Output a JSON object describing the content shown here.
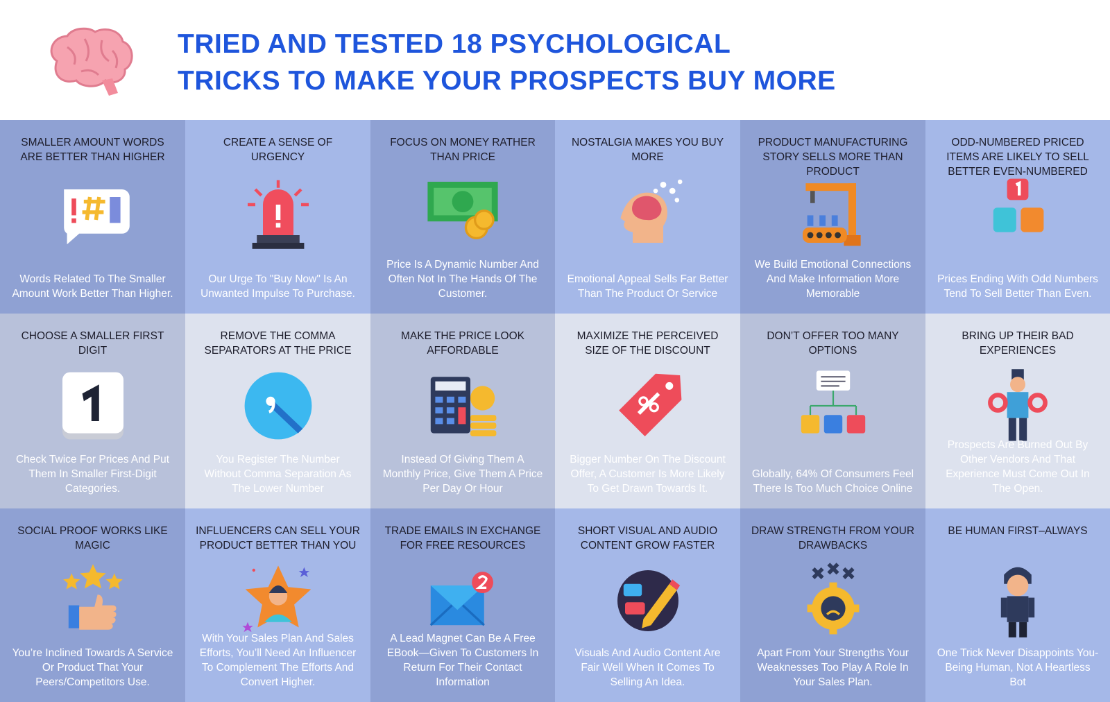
{
  "header": {
    "title_line1": "TRIED AND TESTED 18 PSYCHOLOGICAL",
    "title_line2": "TRICKS TO MAKE YOUR PROSPECTS BUY MORE"
  },
  "cards": [
    {
      "title": "SMALLER AMOUNT WORDS ARE BETTER THAN HIGHER",
      "text": "Words Related To The Smaller Amount Work Better Than Higher."
    },
    {
      "title": "CREATE A SENSE OF URGENCY",
      "text": "Our Urge To \"Buy Now\" Is An Unwanted Impulse To Purchase."
    },
    {
      "title": "FOCUS ON MONEY RATHER THAN PRICE",
      "text": "Price Is A Dynamic Number And Often Not In The Hands Of The Customer."
    },
    {
      "title": "NOSTALGIA MAKES YOU BUY MORE",
      "text": "Emotional Appeal Sells Far Better Than The Product Or Service"
    },
    {
      "title": "PRODUCT MANUFACTURING STORY SELLS MORE THAN PRODUCT",
      "text": "We Build Emotional Connections And Make Information More Memorable"
    },
    {
      "title": "ODD-NUMBERED PRICED ITEMS ARE LIKELY TO SELL BETTER EVEN-NUMBERED",
      "text": "Prices Ending With Odd Numbers Tend To Sell Better Than Even."
    },
    {
      "title": "CHOOSE A SMALLER FIRST DIGIT",
      "text": "Check Twice For Prices And Put Them In Smaller First-Digit Categories."
    },
    {
      "title": "REMOVE THE COMMA SEPARATORS AT THE PRICE",
      "text": "You Register The Number Without Comma Separation As The Lower Number"
    },
    {
      "title": "MAKE THE PRICE LOOK AFFORDABLE",
      "text": "Instead Of Giving Them A Monthly Price, Give Them A Price Per Day Or Hour"
    },
    {
      "title": "MAXIMIZE THE PERCEIVED SIZE OF THE DISCOUNT",
      "text": "Bigger Number On The Discount Offer, A Customer Is More Likely To Get Drawn Towards It."
    },
    {
      "title": "DON’T OFFER TOO MANY OPTIONS",
      "text": "Globally, 64% Of Consumers Feel There Is Too Much Choice Online"
    },
    {
      "title": "BRING UP THEIR BAD EXPERIENCES",
      "text": "Prospects Are Burned Out By Other Vendors And That Experience Must Come Out In The Open."
    },
    {
      "title": "SOCIAL PROOF WORKS LIKE MAGIC",
      "text": "You’re Inclined Towards A Service Or Product That Your Peers/Competitors Use."
    },
    {
      "title": "INFLUENCERS CAN SELL YOUR PRODUCT BETTER THAN YOU",
      "text": "With Your Sales Plan And Sales Efforts, You’ll Need An Influencer To Complement The Efforts And Convert Higher."
    },
    {
      "title": "TRADE EMAILS IN EXCHANGE FOR FREE RESOURCES",
      "text": "A Lead Magnet Can Be A Free EBook—Given To Customers In Return For Their Contact Information"
    },
    {
      "title": "SHORT VISUAL AND AUDIO CONTENT GROW FASTER",
      "text": "Visuals And Audio Content Are Fair Well When It Comes To Selling An Idea."
    },
    {
      "title": "DRAW STRENGTH FROM YOUR DRAWBACKS",
      "text": "Apart From Your Strengths Your Weaknesses Too Play A Role In Your Sales Plan."
    },
    {
      "title": "BE HUMAN FIRST–ALWAYS",
      "text": "One Trick Never Disappoints You- Being Human, Not A Heartless Bot"
    }
  ]
}
